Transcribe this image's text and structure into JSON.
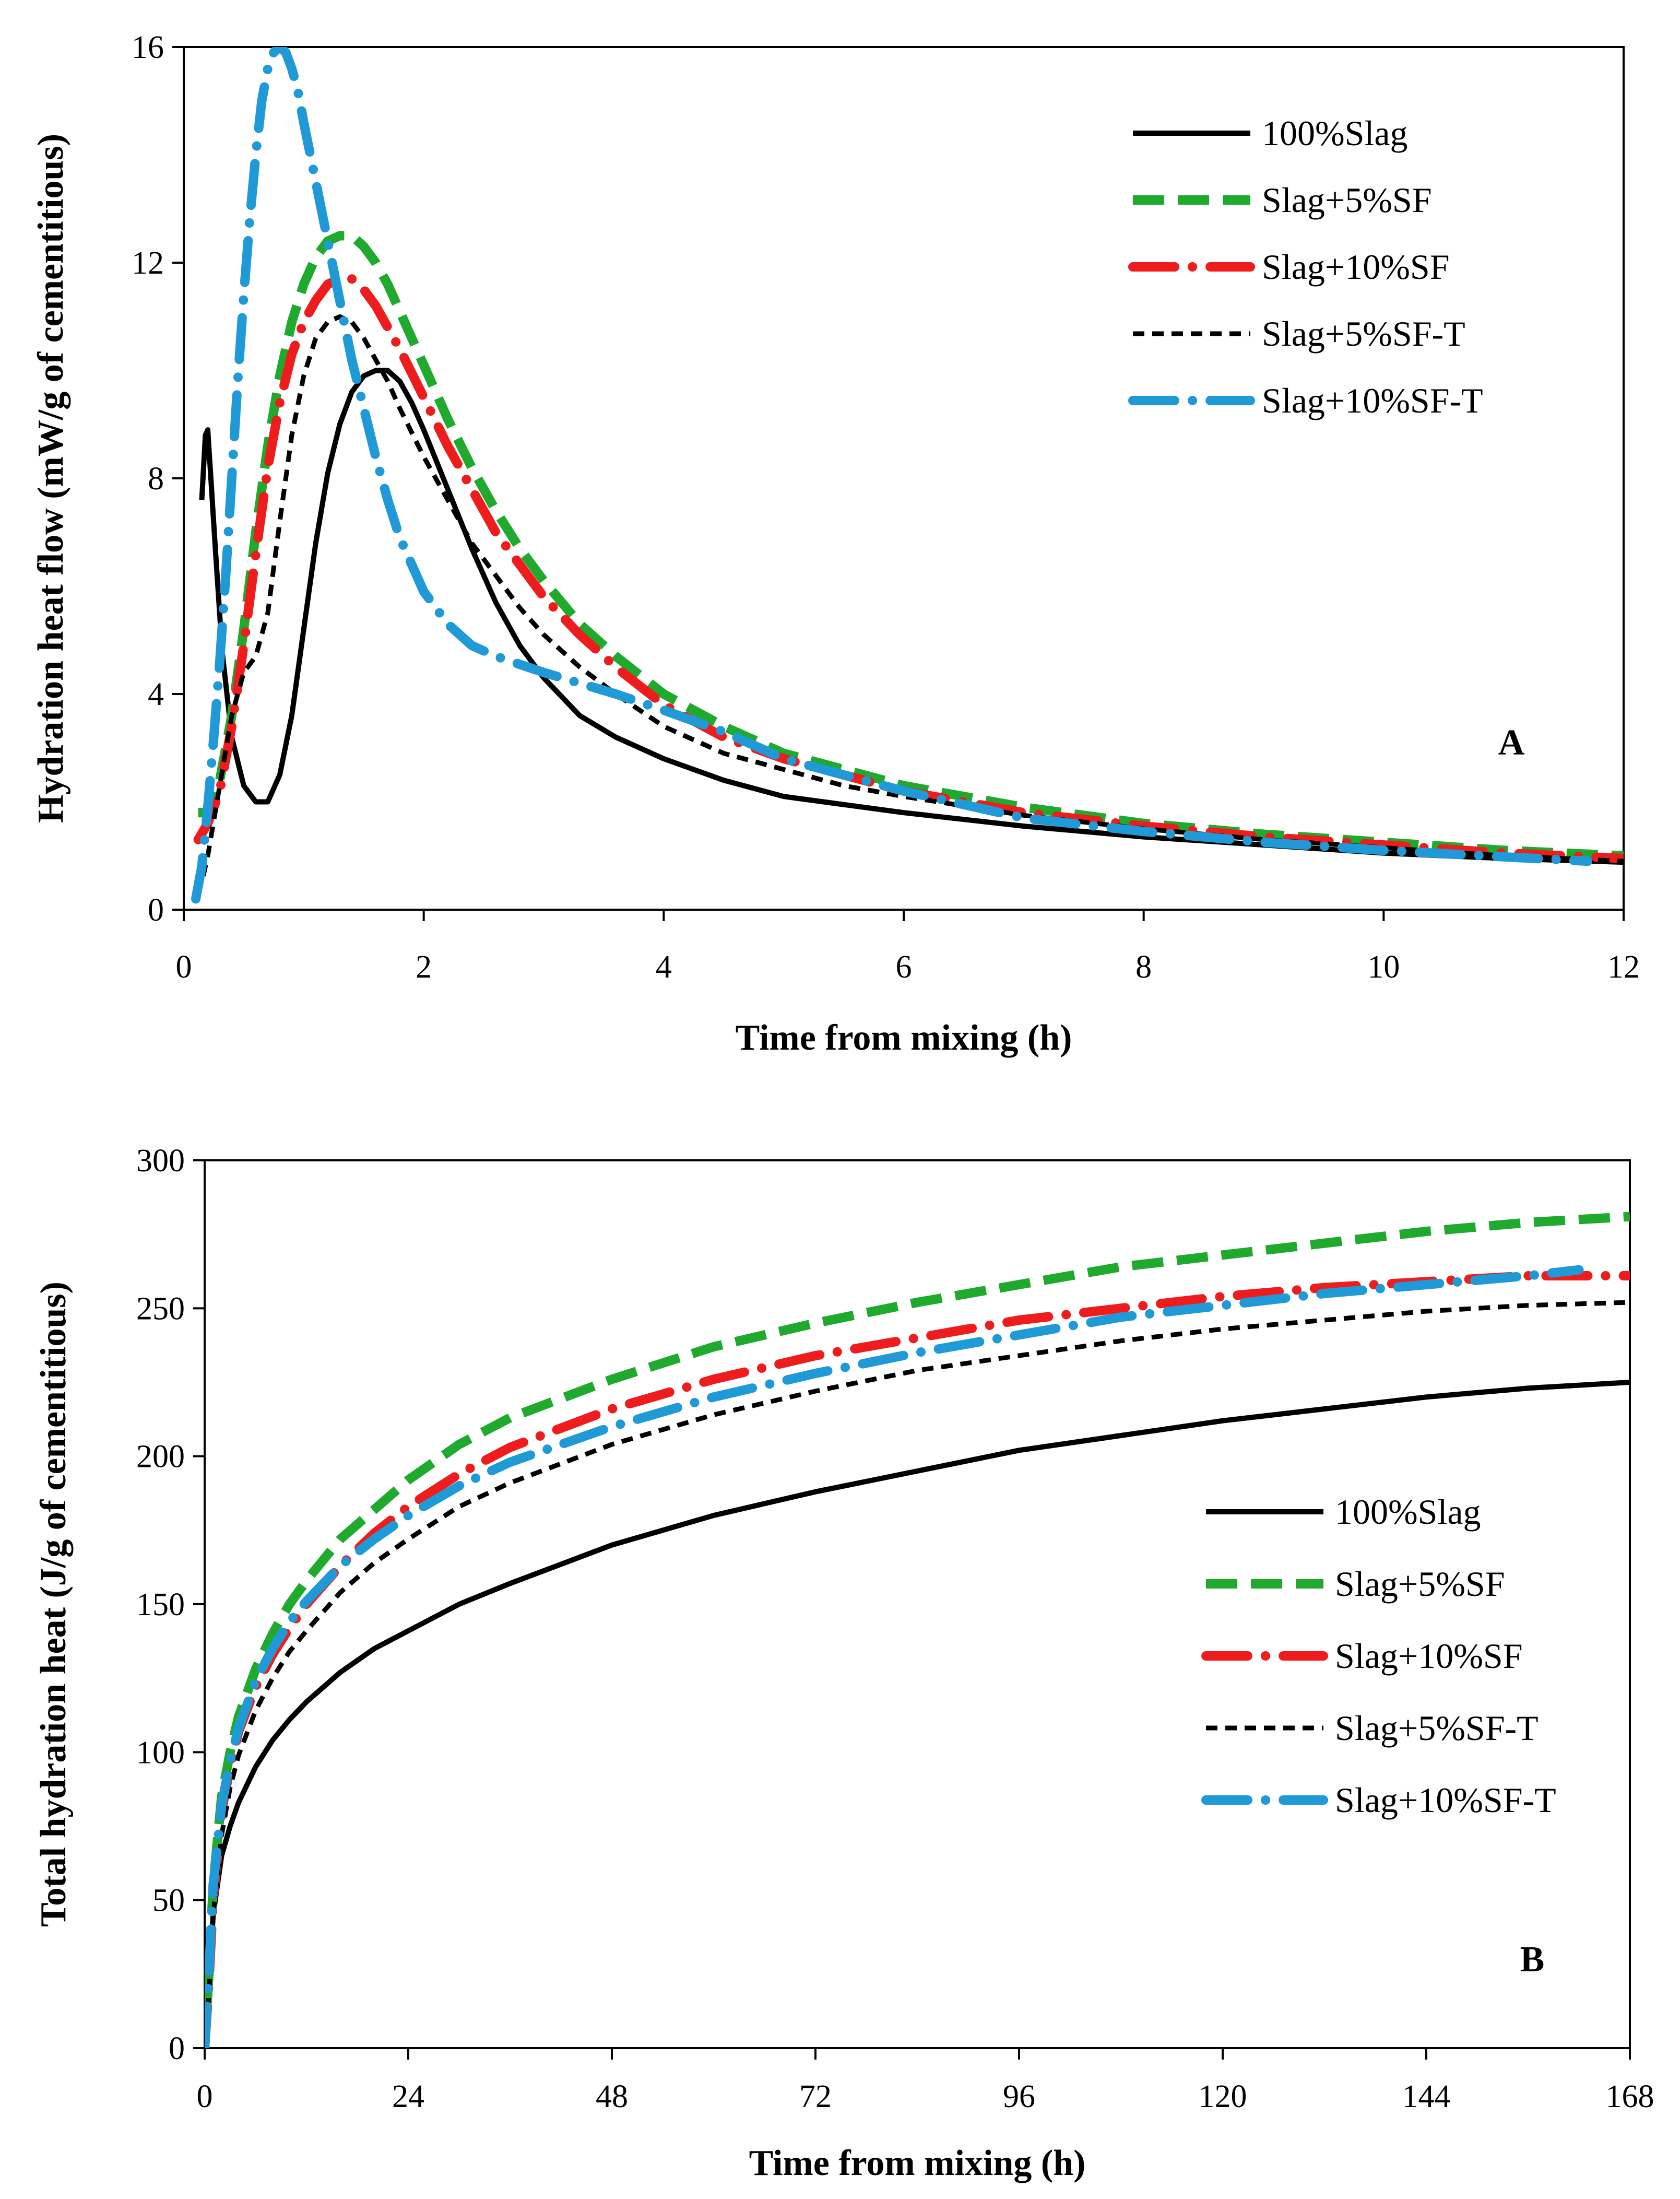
{
  "chart_data": [
    {
      "type": "line",
      "panel_label": "A",
      "xlabel": "Time from mixing (h)",
      "ylabel": "Hydration heat flow (mW/g of cementitious)",
      "xlim": [
        0,
        12
      ],
      "ylim": [
        0,
        16
      ],
      "xticks": [
        0,
        2,
        4,
        6,
        8,
        10,
        12
      ],
      "yticks": [
        0,
        4,
        8,
        12,
        16
      ],
      "grid": false,
      "legend_position": "top-right",
      "series": [
        {
          "name": "100%Slag",
          "color": "#000000",
          "style": "solid",
          "x": [
            0.15,
            0.18,
            0.2,
            0.22,
            0.26,
            0.32,
            0.4,
            0.5,
            0.6,
            0.7,
            0.8,
            0.9,
            1.0,
            1.1,
            1.2,
            1.3,
            1.4,
            1.5,
            1.6,
            1.7,
            1.8,
            1.9,
            2.0,
            2.2,
            2.4,
            2.6,
            2.8,
            3.0,
            3.3,
            3.6,
            4.0,
            4.5,
            5.0,
            6.0,
            7.0,
            8.0,
            9.0,
            10.0,
            11.0,
            12.0
          ],
          "y": [
            7.6,
            8.8,
            8.9,
            8.2,
            6.8,
            4.8,
            3.2,
            2.3,
            2.0,
            2.0,
            2.5,
            3.6,
            5.2,
            6.8,
            8.1,
            9.0,
            9.6,
            9.9,
            10.0,
            10.0,
            9.8,
            9.4,
            8.9,
            7.8,
            6.7,
            5.7,
            4.9,
            4.3,
            3.6,
            3.2,
            2.8,
            2.4,
            2.1,
            1.8,
            1.55,
            1.35,
            1.2,
            1.05,
            0.95,
            0.88
          ]
        },
        {
          "name": "Slag+5%SF",
          "color": "#1faa2e",
          "style": "dash",
          "x": [
            0.12,
            0.2,
            0.3,
            0.4,
            0.5,
            0.6,
            0.7,
            0.8,
            0.9,
            1.0,
            1.1,
            1.2,
            1.3,
            1.4,
            1.5,
            1.6,
            1.7,
            1.8,
            2.0,
            2.2,
            2.4,
            2.6,
            2.8,
            3.0,
            3.3,
            3.6,
            4.0,
            4.5,
            5.0,
            5.5,
            6.0,
            7.0,
            8.0,
            9.0,
            10.0,
            11.0,
            12.0
          ],
          "y": [
            1.8,
            1.8,
            2.4,
            3.6,
            5.2,
            7.0,
            8.6,
            9.9,
            10.9,
            11.6,
            12.1,
            12.4,
            12.5,
            12.5,
            12.3,
            12.0,
            11.6,
            11.1,
            10.1,
            9.1,
            8.2,
            7.4,
            6.7,
            6.1,
            5.3,
            4.7,
            4.0,
            3.4,
            2.9,
            2.6,
            2.3,
            1.9,
            1.6,
            1.4,
            1.25,
            1.1,
            1.0
          ]
        },
        {
          "name": "Slag+10%SF",
          "color": "#ee1c1c",
          "style": "longdash-dot",
          "x": [
            0.12,
            0.2,
            0.3,
            0.4,
            0.5,
            0.6,
            0.7,
            0.8,
            0.9,
            1.0,
            1.1,
            1.2,
            1.3,
            1.4,
            1.5,
            1.6,
            1.7,
            1.8,
            2.0,
            2.2,
            2.4,
            2.6,
            2.8,
            3.0,
            3.3,
            3.6,
            4.0,
            4.5,
            5.0,
            5.5,
            6.0,
            7.0,
            8.0,
            9.0,
            10.0,
            11.0,
            12.0
          ],
          "y": [
            1.3,
            1.6,
            2.2,
            3.4,
            4.9,
            6.6,
            8.2,
            9.4,
            10.3,
            10.9,
            11.3,
            11.6,
            11.7,
            11.7,
            11.5,
            11.2,
            10.8,
            10.4,
            9.5,
            8.6,
            7.8,
            7.0,
            6.4,
            5.8,
            5.1,
            4.5,
            3.8,
            3.2,
            2.8,
            2.5,
            2.2,
            1.8,
            1.55,
            1.35,
            1.2,
            1.05,
            0.95
          ]
        },
        {
          "name": "Slag+5%SF-T",
          "color": "#000000",
          "style": "shortdash",
          "x": [
            0.1,
            0.15,
            0.2,
            0.3,
            0.4,
            0.5,
            0.6,
            0.7,
            0.8,
            0.9,
            1.0,
            1.1,
            1.2,
            1.3,
            1.4,
            1.5,
            1.6,
            1.7,
            1.8,
            2.0,
            2.2,
            2.4,
            2.6,
            2.8,
            3.0,
            3.3,
            3.6,
            4.0,
            4.5,
            5.0,
            5.5,
            6.0,
            7.0,
            8.0,
            9.0,
            10.0,
            11.0,
            12.0
          ],
          "y": [
            0.3,
            0.5,
            1.0,
            2.3,
            3.6,
            4.4,
            4.7,
            5.5,
            7.2,
            8.8,
            9.9,
            10.6,
            10.9,
            11.0,
            10.9,
            10.6,
            10.2,
            9.8,
            9.3,
            8.4,
            7.6,
            6.8,
            6.2,
            5.6,
            5.1,
            4.5,
            4.0,
            3.4,
            2.9,
            2.6,
            2.3,
            2.1,
            1.75,
            1.5,
            1.3,
            1.15,
            1.0,
            0.9
          ]
        },
        {
          "name": "Slag+10%SF-T",
          "color": "#1f9ad7",
          "style": "longdash-dot",
          "x": [
            0.1,
            0.15,
            0.2,
            0.25,
            0.3,
            0.35,
            0.4,
            0.45,
            0.5,
            0.55,
            0.6,
            0.65,
            0.7,
            0.75,
            0.8,
            0.85,
            0.9,
            0.95,
            1.0,
            1.1,
            1.2,
            1.3,
            1.4,
            1.5,
            1.6,
            1.7,
            1.8,
            2.0,
            2.2,
            2.4,
            2.6,
            2.8,
            3.0,
            3.3,
            3.6,
            4.0,
            4.5,
            5.0,
            5.5,
            6.0,
            7.0,
            8.0,
            9.0,
            10.0,
            11.0,
            11.7
          ],
          "y": [
            0.2,
            0.8,
            1.9,
            3.2,
            4.6,
            6.2,
            8.0,
            9.8,
            11.4,
            12.8,
            14.0,
            15.0,
            15.6,
            15.9,
            16.0,
            15.9,
            15.6,
            15.2,
            14.6,
            13.5,
            12.4,
            11.3,
            10.2,
            9.3,
            8.4,
            7.6,
            6.9,
            5.9,
            5.3,
            4.9,
            4.7,
            4.55,
            4.4,
            4.2,
            4.0,
            3.7,
            3.3,
            2.8,
            2.5,
            2.2,
            1.7,
            1.45,
            1.25,
            1.1,
            0.98,
            0.9
          ]
        }
      ]
    },
    {
      "type": "line",
      "panel_label": "B",
      "xlabel": "Time from mixing (h)",
      "ylabel": "Total hydration heat (J/g of cementitious)",
      "xlim": [
        0,
        168
      ],
      "ylim": [
        0,
        300
      ],
      "xticks": [
        0,
        24,
        48,
        72,
        96,
        120,
        144,
        168
      ],
      "yticks": [
        0,
        50,
        100,
        150,
        200,
        250,
        300
      ],
      "grid": false,
      "legend_position": "center-right",
      "series": [
        {
          "name": "100%Slag",
          "color": "#000000",
          "style": "solid",
          "x": [
            0,
            0.5,
            1,
            2,
            3,
            4,
            6,
            8,
            10,
            12,
            16,
            20,
            24,
            30,
            36,
            48,
            60,
            72,
            84,
            96,
            108,
            120,
            132,
            144,
            156,
            168
          ],
          "y": [
            0,
            20,
            45,
            65,
            75,
            83,
            95,
            104,
            111,
            117,
            127,
            135,
            141,
            150,
            157,
            170,
            180,
            188,
            195,
            202,
            207,
            212,
            216,
            220,
            223,
            225
          ]
        },
        {
          "name": "Slag+5%SF",
          "color": "#1faa2e",
          "style": "dash",
          "x": [
            0,
            0.5,
            1,
            2,
            3,
            4,
            6,
            8,
            10,
            12,
            16,
            20,
            24,
            30,
            36,
            48,
            60,
            72,
            84,
            96,
            108,
            120,
            132,
            144,
            156,
            168
          ],
          "y": [
            0,
            25,
            55,
            85,
            100,
            112,
            128,
            140,
            150,
            158,
            172,
            182,
            192,
            204,
            213,
            226,
            237,
            245,
            252,
            258,
            264,
            268,
            272,
            276,
            279,
            281
          ]
        },
        {
          "name": "Slag+10%SF",
          "color": "#ee1c1c",
          "style": "longdash-dot",
          "x": [
            0,
            0.5,
            1,
            2,
            3,
            4,
            6,
            8,
            10,
            12,
            16,
            20,
            24,
            30,
            36,
            48,
            60,
            72,
            84,
            96,
            108,
            120,
            132,
            144,
            156,
            168
          ],
          "y": [
            0,
            22,
            50,
            80,
            95,
            107,
            122,
            133,
            142,
            150,
            163,
            174,
            183,
            194,
            203,
            216,
            226,
            234,
            240,
            246,
            250,
            254,
            257,
            259,
            261,
            261
          ]
        },
        {
          "name": "Slag+5%SF-T",
          "color": "#000000",
          "style": "shortdash",
          "x": [
            0,
            0.5,
            1,
            2,
            3,
            4,
            6,
            8,
            10,
            12,
            16,
            20,
            24,
            30,
            36,
            48,
            60,
            72,
            84,
            96,
            108,
            120,
            132,
            144,
            156,
            168
          ],
          "y": [
            0,
            18,
            45,
            72,
            88,
            99,
            114,
            125,
            134,
            141,
            154,
            164,
            172,
            183,
            191,
            204,
            214,
            222,
            229,
            234,
            239,
            243,
            246,
            249,
            251,
            252
          ]
        },
        {
          "name": "Slag+10%SF-T",
          "color": "#1f9ad7",
          "style": "longdash-dot",
          "x": [
            0,
            0.5,
            1,
            2,
            3,
            4,
            6,
            8,
            10,
            12,
            16,
            20,
            24,
            30,
            36,
            48,
            60,
            72,
            84,
            96,
            108,
            120,
            132,
            144,
            156,
            162
          ],
          "y": [
            0,
            25,
            55,
            82,
            97,
            108,
            124,
            135,
            144,
            151,
            163,
            172,
            180,
            190,
            198,
            210,
            220,
            228,
            235,
            241,
            247,
            251,
            255,
            258,
            261,
            263
          ]
        }
      ]
    }
  ]
}
